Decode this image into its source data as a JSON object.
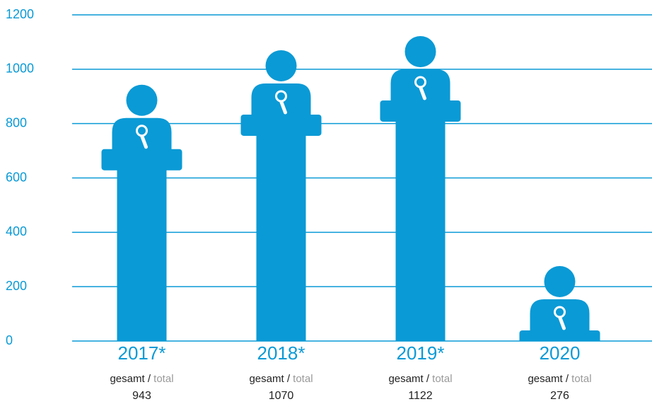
{
  "chart_data": {
    "type": "pictogram-bar",
    "categories": [
      "2017*",
      "2018*",
      "2019*",
      "2020"
    ],
    "values": [
      943,
      1070,
      1122,
      276
    ],
    "value_caption_de": "gesamt /",
    "value_caption_en": "total",
    "color": "#0a9ad6",
    "ylim": [
      0,
      1200
    ],
    "yticks": [
      0,
      200,
      400,
      600,
      800,
      1000,
      1200
    ],
    "grid": true
  }
}
